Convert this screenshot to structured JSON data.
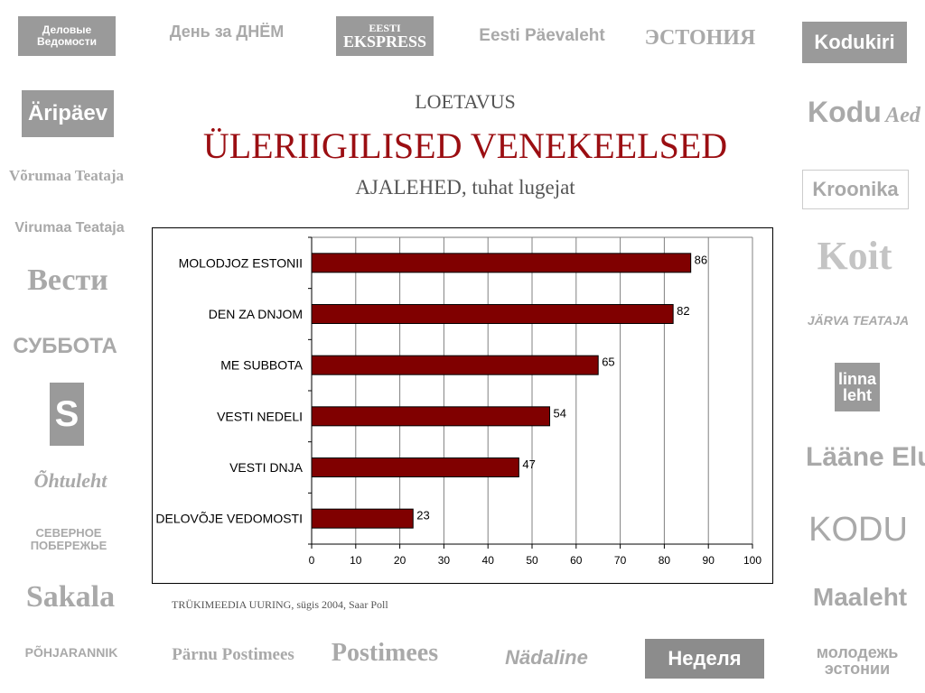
{
  "header": {
    "kicker": "LOETAVUS",
    "title": "ÜLERIIGILISED VENEKEELSED",
    "subtitle": "AJALEHED, tuhat lugejat"
  },
  "footer": {
    "source": "TRÜKIMEEDIA UURING, sügis 2004, Saar Poll"
  },
  "logos": {
    "delovye_vedomosti": "Деловые Ведомости",
    "den_za_dnjom": "День за ДНЁМ",
    "eesti_ekspress_top": "EESTI",
    "eesti_ekspress_bottom": "EKSPRESS",
    "eesti_paevaleht": "Eesti Päevaleht",
    "estonija": "ЭСТОНИЯ",
    "kodukiri": "Kodukiri",
    "aripaev": "Äripäev",
    "voru_teataja": "Võrumaa Teataja",
    "virumaa_teataja": "Virumaa Teataja",
    "vesti": "Вести",
    "subbota": "СУББОТА",
    "s_stiil": "S",
    "ohtuleht": "Õhtuleht",
    "severnoe_poberezhje": "СЕВЕРНОЕ ПОБЕРЕЖЬЕ",
    "sakala": "Sakala",
    "pohjarannik": "PÕHJARANNIK",
    "parnu_postimees": "Pärnu Postimees",
    "postimees": "Postimees",
    "nadaline": "Nädaline",
    "nedelja": "Неделя",
    "molodezh_estonii": "молодежь эстонии",
    "kodu_ja_aed_1": "Kodu",
    "kodu_ja_aed_2": "Aed",
    "kroonika": "Kroonika",
    "koit": "Koit",
    "jarva_teataja": "JÄRVA TEATAJA",
    "linnaleht": "linna leht",
    "laane_elu": "Lääne Elu",
    "meie_kodu": "KODU",
    "maaleht": "Maaleht"
  },
  "colors": {
    "bar": "#800000",
    "title": "#9b0e12",
    "logo": "#a9a9a9"
  },
  "chart_data": {
    "type": "bar",
    "orientation": "horizontal",
    "categories": [
      "MOLODJOZ ESTONII",
      "DEN ZA DNJOM",
      "ME SUBBOTA",
      "VESTI NEDELI",
      "VESTI DNJA",
      "DELOVÕJE VEDOMOSTI"
    ],
    "values": [
      86,
      82,
      65,
      54,
      47,
      23
    ],
    "xlim": [
      0,
      100
    ],
    "xticks": [
      0,
      10,
      20,
      30,
      40,
      50,
      60,
      70,
      80,
      90,
      100
    ],
    "grid": true,
    "legend": "none"
  }
}
